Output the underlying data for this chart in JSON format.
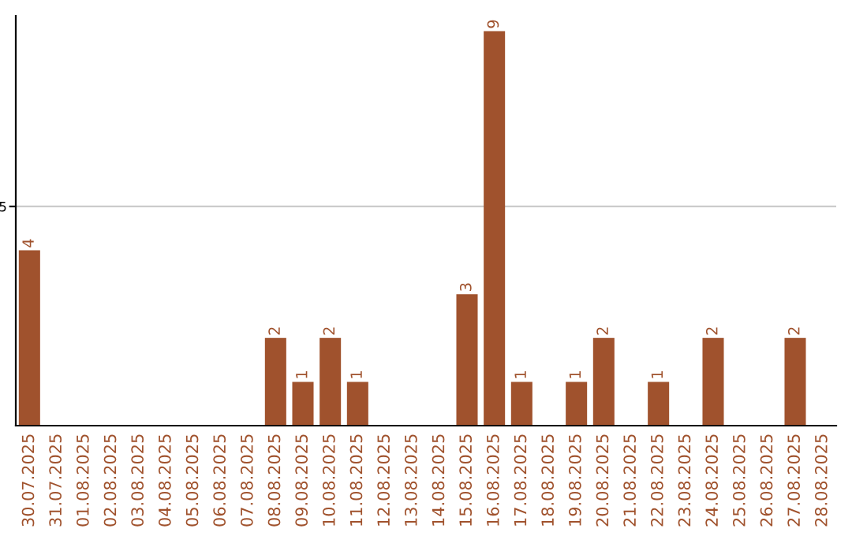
{
  "chart_data": {
    "type": "bar",
    "categories": [
      "30.07.2025",
      "31.07.2025",
      "01.08.2025",
      "02.08.2025",
      "03.08.2025",
      "04.08.2025",
      "05.08.2025",
      "06.08.2025",
      "07.08.2025",
      "08.08.2025",
      "09.08.2025",
      "10.08.2025",
      "11.08.2025",
      "12.08.2025",
      "13.08.2025",
      "14.08.2025",
      "15.08.2025",
      "16.08.2025",
      "17.08.2025",
      "18.08.2025",
      "19.08.2025",
      "20.08.2025",
      "21.08.2025",
      "22.08.2025",
      "23.08.2025",
      "24.08.2025",
      "25.08.2025",
      "26.08.2025",
      "27.08.2025",
      "28.08.2025"
    ],
    "values": [
      4,
      0,
      0,
      0,
      0,
      0,
      0,
      0,
      0,
      2,
      1,
      2,
      1,
      0,
      0,
      0,
      3,
      9,
      1,
      0,
      1,
      2,
      0,
      1,
      0,
      2,
      0,
      0,
      2,
      0
    ],
    "value_labels": [
      "4",
      null,
      null,
      null,
      null,
      null,
      null,
      null,
      null,
      "2",
      "1",
      "2",
      "1",
      null,
      null,
      null,
      "3",
      "9",
      "1",
      null,
      "1",
      "2",
      null,
      "1",
      null,
      "2",
      null,
      null,
      "2",
      null
    ],
    "color": "#a0522d",
    "ylim": [
      0,
      9.35
    ],
    "yticks": [
      5
    ],
    "grid": "y"
  }
}
